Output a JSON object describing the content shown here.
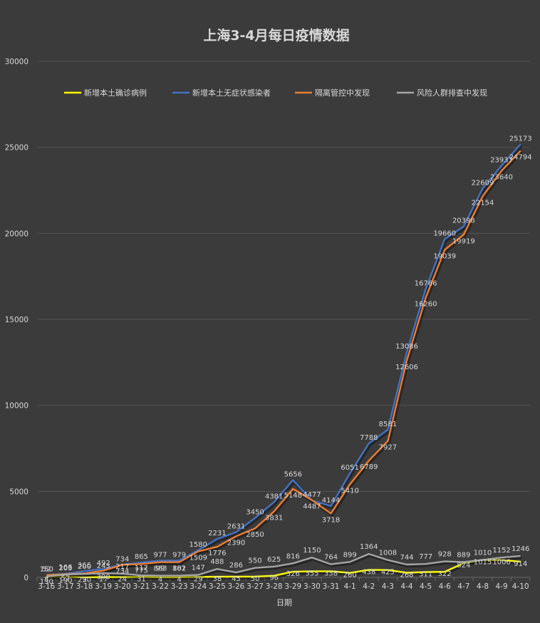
{
  "chart_data": {
    "type": "line",
    "title": "上海3-4月每日疫情数据",
    "xlabel": "日期",
    "ylabel": "",
    "ylim": [
      0,
      30000
    ],
    "yticks": [
      0,
      5000,
      10000,
      15000,
      20000,
      25000,
      30000
    ],
    "grid": true,
    "legend_position": "top",
    "categories": [
      "3-16",
      "3-17",
      "3-18",
      "3-19",
      "3-20",
      "3-21",
      "3-22",
      "3-23",
      "3-24",
      "3-25",
      "3-26",
      "3-27",
      "3-28",
      "3-29",
      "3-30",
      "3-31",
      "4-1",
      "4-2",
      "4-3",
      "4-4",
      "4-5",
      "4-6",
      "4-7",
      "4-8",
      "4-9",
      "4-10"
    ],
    "series": [
      {
        "name": "新增本土确诊病例",
        "color": "#ffff00",
        "values": [
          8,
          57,
          9,
          17,
          24,
          31,
          4,
          4,
          29,
          38,
          45,
          50,
          96,
          326,
          355,
          358,
          260,
          438,
          425,
          268,
          311,
          322,
          824,
          1015,
          1006,
          914
        ]
      },
      {
        "name": "新增本土无症状感染者",
        "color": "#4472c4",
        "values": [
          150,
          203,
          366,
          492,
          734,
          865,
          977,
          979,
          1580,
          2231,
          2631,
          3450,
          4381,
          5656,
          4477,
          4144,
          6051,
          7788,
          8581,
          13086,
          16766,
          19660,
          20398,
          22609,
          23937,
          25173
        ]
      },
      {
        "name": "隔离管控中发现",
        "color": "#ed7d31",
        "values": [
          130,
          190,
          230,
          390,
          734,
          775,
          883,
          882,
          1509,
          1776,
          2390,
          2850,
          3831,
          5148,
          4487,
          3718,
          5410,
          6789,
          7927,
          12606,
          16260,
          19039,
          19919,
          22154,
          23640,
          24794
        ]
      },
      {
        "name": "风险人群排查中发现",
        "color": "#a5a5a5",
        "values": [
          52,
          166,
          200,
          243,
          217,
          117,
          99,
          101,
          147,
          488,
          286,
          550,
          625,
          816,
          1150,
          764,
          899,
          1364,
          1008,
          744,
          777,
          928,
          889,
          1010,
          1152,
          1246
        ]
      }
    ]
  }
}
